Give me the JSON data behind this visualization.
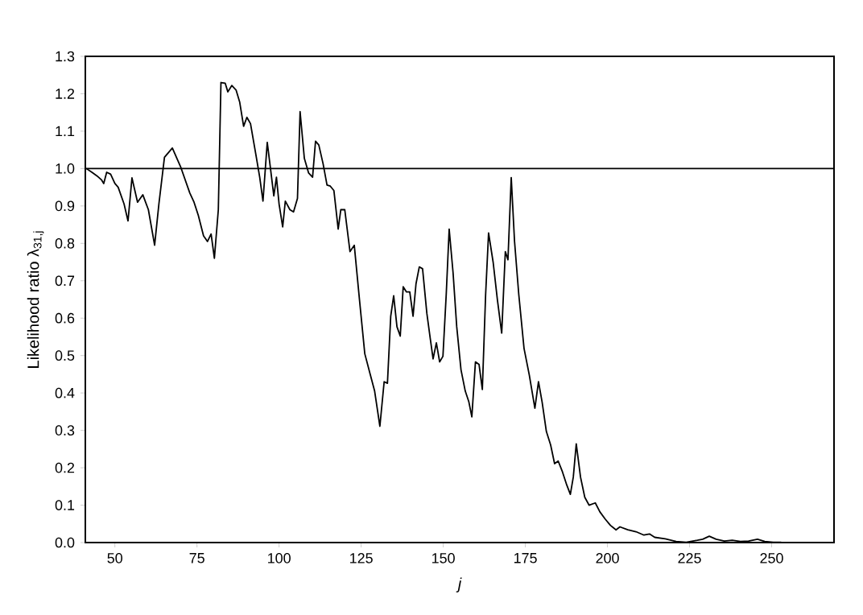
{
  "chart_data": {
    "type": "line",
    "xlabel": "j",
    "ylabel": "Likelihood ratio λ$_{31,j}$",
    "x": [
      41.3,
      43,
      44.6,
      45.9,
      46.6,
      47.5,
      48.7,
      50,
      51,
      52.8,
      54,
      55.2,
      56.9,
      58.5,
      60.2,
      62.1,
      63.4,
      65.1,
      67.5,
      70,
      72.8,
      74.1,
      75.4,
      77,
      78.2,
      79.3,
      80.3,
      81.5,
      82.3,
      83.6,
      84.4,
      85.6,
      86.9,
      88,
      89.2,
      90.2,
      91.3,
      93,
      94.1,
      95.1,
      96.4,
      97.4,
      98.4,
      99.2,
      100,
      101.1,
      101.9,
      103.3,
      104.4,
      105.6,
      106.4,
      107.7,
      109,
      110.2,
      111.1,
      112.1,
      113.4,
      114.6,
      115.6,
      116.7,
      118,
      118.8,
      120,
      121.6,
      122.9,
      124.5,
      126.1,
      127.8,
      129.1,
      130.7,
      132,
      133,
      134,
      134.9,
      135.9,
      136.9,
      137.8,
      138.8,
      139.8,
      140.8,
      141.7,
      142.7,
      143.7,
      145,
      146,
      146.9,
      147.9,
      148.9,
      149.9,
      150.9,
      151.8,
      153,
      154.1,
      155.4,
      156.7,
      157.8,
      158.7,
      159.8,
      160.9,
      161.9,
      162.9,
      163.8,
      165.2,
      166.5,
      167.8,
      168.9,
      169.7,
      170.7,
      171.7,
      173,
      174.6,
      176.2,
      177.9,
      179,
      180.1,
      181.4,
      182.7,
      183.9,
      185,
      186.3,
      187.6,
      188.7,
      189.6,
      190.5,
      191.8,
      193.1,
      194.4,
      196.3,
      197.7,
      199.3,
      200.9,
      202.6,
      203.8,
      206.2,
      208.7,
      211.1,
      212.8,
      214.4,
      217.6,
      220.9,
      224,
      227.4,
      229,
      231,
      233.1,
      235.6,
      238,
      240.5,
      243,
      245.7,
      247.9,
      250.5,
      252.9
    ],
    "series": [
      {
        "color": "#000000",
        "values": [
          1.0,
          0.99,
          0.98,
          0.97,
          0.96,
          0.99,
          0.985,
          0.96,
          0.95,
          0.905,
          0.86,
          0.975,
          0.91,
          0.93,
          0.89,
          0.795,
          0.905,
          1.03,
          1.055,
          1.005,
          0.935,
          0.91,
          0.875,
          0.82,
          0.805,
          0.825,
          0.76,
          0.89,
          1.23,
          1.228,
          1.205,
          1.222,
          1.21,
          1.178,
          1.113,
          1.137,
          1.12,
          1.034,
          0.977,
          0.913,
          1.07,
          0.999,
          0.927,
          0.977,
          0.905,
          0.844,
          0.913,
          0.89,
          0.884,
          0.92,
          1.152,
          1.027,
          0.988,
          0.977,
          1.073,
          1.063,
          1.013,
          0.956,
          0.953,
          0.941,
          0.838,
          0.89,
          0.89,
          0.778,
          0.795,
          0.648,
          0.505,
          0.448,
          0.405,
          0.311,
          0.43,
          0.426,
          0.605,
          0.66,
          0.577,
          0.552,
          0.684,
          0.67,
          0.67,
          0.605,
          0.692,
          0.737,
          0.732,
          0.613,
          0.548,
          0.491,
          0.534,
          0.483,
          0.498,
          0.663,
          0.838,
          0.72,
          0.577,
          0.462,
          0.405,
          0.376,
          0.336,
          0.483,
          0.476,
          0.409,
          0.663,
          0.828,
          0.749,
          0.648,
          0.56,
          0.778,
          0.756,
          0.976,
          0.806,
          0.663,
          0.519,
          0.448,
          0.359,
          0.43,
          0.376,
          0.297,
          0.261,
          0.211,
          0.218,
          0.189,
          0.154,
          0.129,
          0.175,
          0.264,
          0.175,
          0.121,
          0.1,
          0.106,
          0.082,
          0.063,
          0.046,
          0.034,
          0.042,
          0.034,
          0.029,
          0.02,
          0.023,
          0.014,
          0.01,
          0.003,
          0.001,
          0.006,
          0.009,
          0.017,
          0.009,
          0.004,
          0.006,
          0.003,
          0.004,
          0.009,
          0.003,
          0.001,
          0.001
        ]
      }
    ],
    "xlim": [
      41,
      269
    ],
    "xticks": [
      50,
      75,
      100,
      125,
      150,
      175,
      200,
      225,
      250
    ],
    "ylim": [
      0,
      1.3
    ],
    "yticks": [
      {
        "value": 0,
        "label": "0.0"
      },
      {
        "value": 0.1,
        "label": "0.1"
      },
      {
        "value": 0.2,
        "label": "0.2"
      },
      {
        "value": 0.3,
        "label": "0.3"
      },
      {
        "value": 0.4,
        "label": "0.4"
      },
      {
        "value": 0.5,
        "label": "0.5"
      },
      {
        "value": 0.6,
        "label": "0.6"
      },
      {
        "value": 0.7,
        "label": "0.7"
      },
      {
        "value": 0.8,
        "label": "0.8"
      },
      {
        "value": 0.9,
        "label": "0.9"
      },
      {
        "value": 1.0,
        "label": "1.0"
      },
      {
        "value": 1.1,
        "label": "1.1"
      },
      {
        "value": 1.2,
        "label": "1.2"
      },
      {
        "value": 1.3,
        "label": "1.3"
      }
    ],
    "ref_lines": [
      {
        "axis": "y",
        "value": 1.0,
        "color": "#000000"
      }
    ],
    "grid": false,
    "marker": "none",
    "line_style": "solid"
  }
}
